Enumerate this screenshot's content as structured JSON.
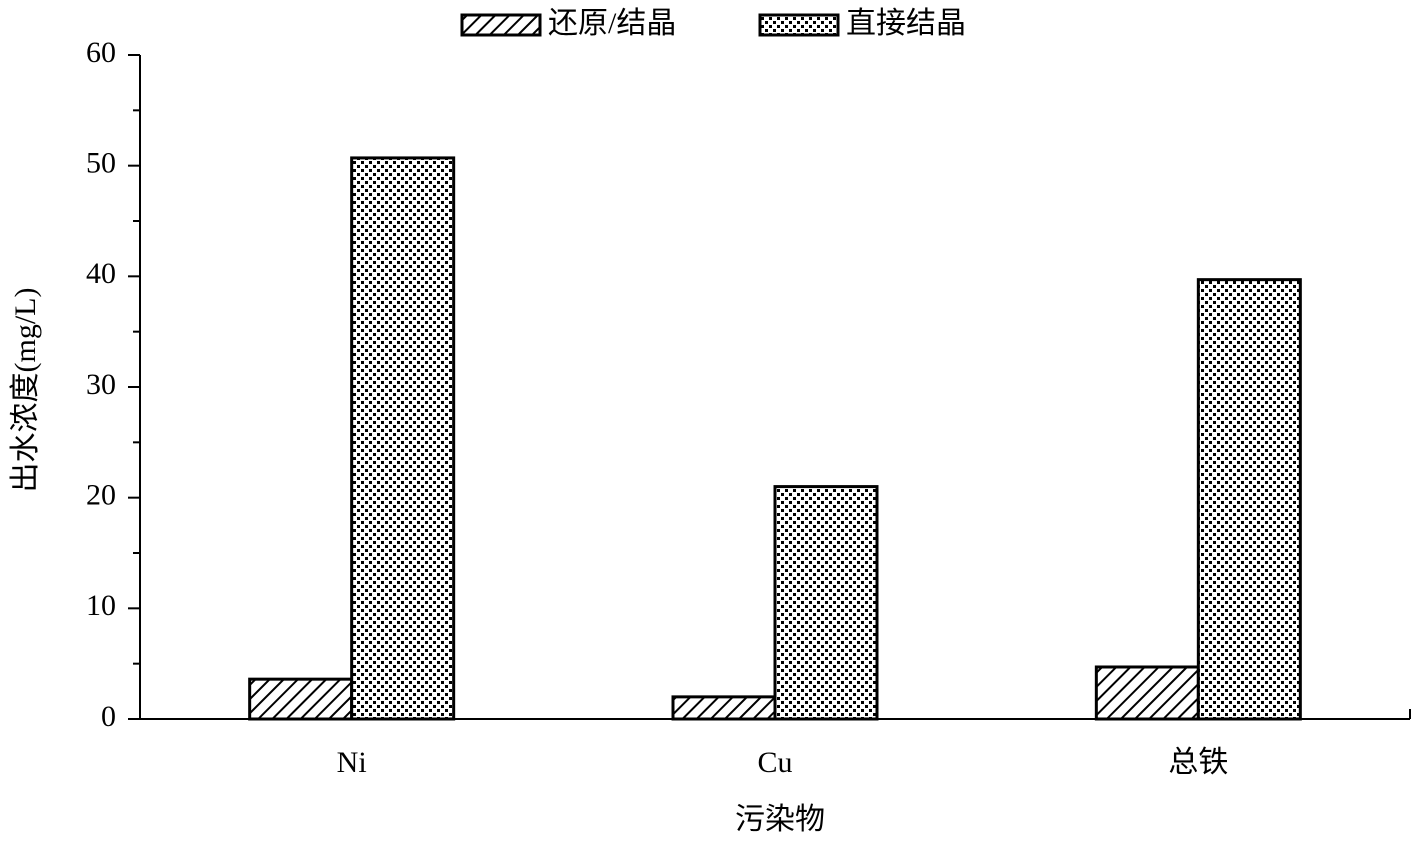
{
  "chart_data": {
    "type": "bar",
    "x_label": "污染物",
    "y_label": "出水浓度(mg/L)",
    "categories": [
      "Ni",
      "Cu",
      "总铁"
    ],
    "series": [
      {
        "name": "还原/结晶",
        "color": "#000000",
        "pattern": "hatch",
        "values": [
          3.6,
          2.0,
          4.7
        ]
      },
      {
        "name": "直接结晶",
        "color": "#000000",
        "pattern": "dots",
        "values": [
          50.7,
          21.0,
          39.7
        ]
      }
    ],
    "ylim": [
      0,
      60
    ],
    "yticks": [
      0,
      10,
      20,
      30,
      40,
      50,
      60
    ],
    "yticks_minor": [
      5,
      15,
      25,
      35,
      45,
      55
    ],
    "legend": "top"
  }
}
